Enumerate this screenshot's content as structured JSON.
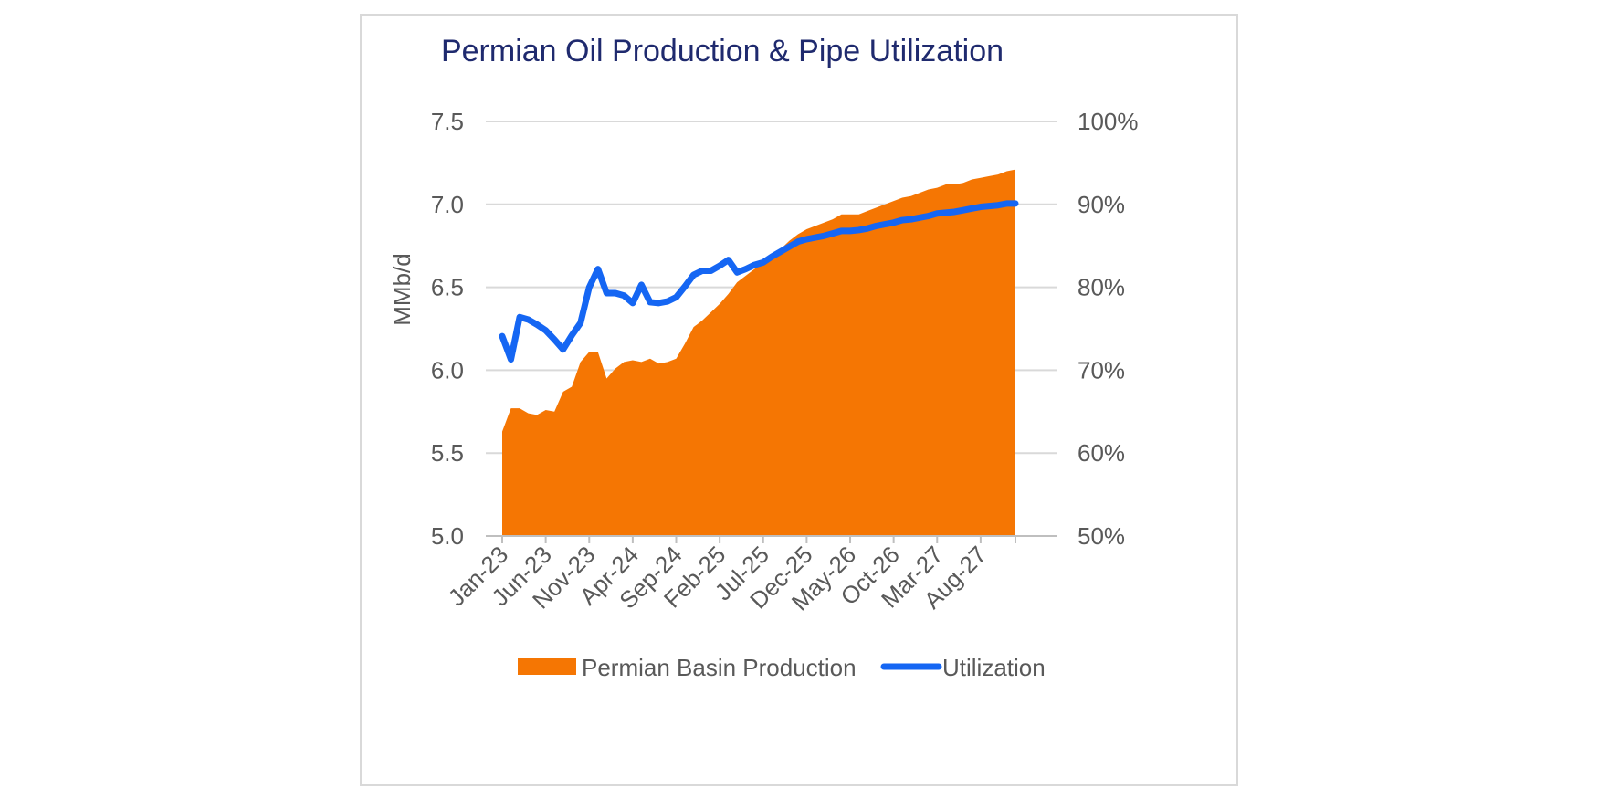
{
  "chart_data": {
    "type": "area",
    "title": "Permian Oil Production & Pipe Utilization",
    "ylabel": "MMb/d",
    "ylim": [
      5.0,
      7.5
    ],
    "y_ticks": [
      "5.0",
      "5.5",
      "6.0",
      "6.5",
      "7.0",
      "7.5"
    ],
    "y2lim": [
      0.5,
      1.0
    ],
    "y2_ticks": [
      "50%",
      "60%",
      "70%",
      "80%",
      "90%",
      "100%"
    ],
    "grid": true,
    "legend_position": "bottom",
    "x_tick_labels": [
      "Jan-23",
      "Jun-23",
      "Nov-23",
      "Apr-24",
      "Sep-24",
      "Feb-25",
      "Jul-25",
      "Dec-25",
      "May-26",
      "Oct-26",
      "Mar-27",
      "Aug-27"
    ],
    "x_tick_step": 5,
    "series": [
      {
        "name": "Permian Basin Production",
        "type": "area",
        "axis": "left",
        "color": "#f57603",
        "values": [
          5.63,
          5.77,
          5.77,
          5.74,
          5.73,
          5.76,
          5.75,
          5.87,
          5.9,
          6.05,
          6.11,
          6.11,
          5.95,
          6.01,
          6.05,
          6.06,
          6.05,
          6.07,
          6.04,
          6.05,
          6.07,
          6.16,
          6.26,
          6.3,
          6.35,
          6.4,
          6.46,
          6.53,
          6.57,
          6.61,
          6.65,
          6.69,
          6.73,
          6.78,
          6.82,
          6.85,
          6.87,
          6.89,
          6.91,
          6.94,
          6.94,
          6.94,
          6.96,
          6.98,
          7.0,
          7.02,
          7.04,
          7.05,
          7.07,
          7.09,
          7.1,
          7.12,
          7.12,
          7.13,
          7.15,
          7.16,
          7.17,
          7.18,
          7.2,
          7.21
        ]
      },
      {
        "name": "Utilization",
        "type": "line",
        "axis": "right",
        "color": "#1566f3",
        "values": [
          0.741,
          0.713,
          0.764,
          0.761,
          0.755,
          0.748,
          0.737,
          0.725,
          0.742,
          0.757,
          0.8,
          0.822,
          0.793,
          0.793,
          0.79,
          0.781,
          0.803,
          0.782,
          0.781,
          0.783,
          0.788,
          0.801,
          0.815,
          0.82,
          0.82,
          0.826,
          0.833,
          0.818,
          0.822,
          0.827,
          0.83,
          0.837,
          0.843,
          0.849,
          0.855,
          0.858,
          0.86,
          0.862,
          0.865,
          0.868,
          0.868,
          0.869,
          0.871,
          0.874,
          0.876,
          0.878,
          0.881,
          0.882,
          0.884,
          0.886,
          0.889,
          0.89,
          0.891,
          0.893,
          0.895,
          0.897,
          0.898,
          0.899,
          0.901,
          0.901
        ]
      }
    ]
  }
}
